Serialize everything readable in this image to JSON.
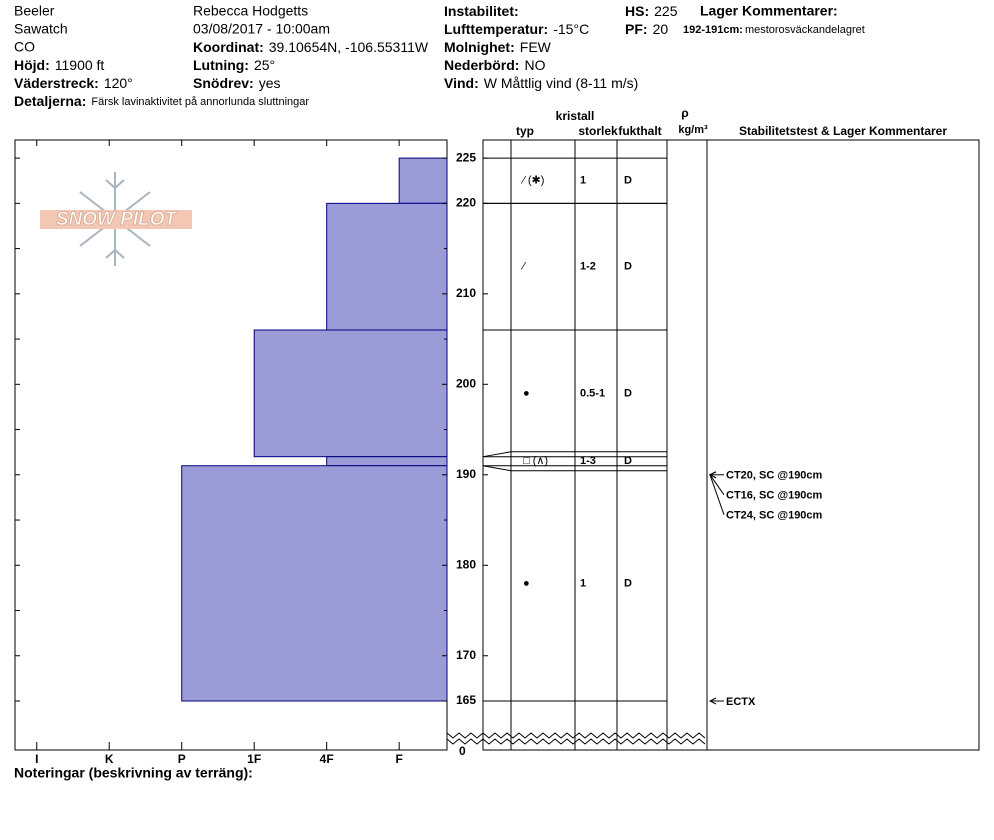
{
  "header": {
    "columns": [
      [
        "Beeler",
        "Sawatch",
        "CO",
        {
          "label": "Höjd:",
          "value": "11900 ft"
        },
        {
          "label": "Väderstreck:",
          "value": "120°"
        },
        {
          "label": "Detaljerna:",
          "value": "Färsk lavinaktivitet på annorlunda sluttningar"
        }
      ],
      [
        "Rebecca Hodgetts",
        "03/08/2017 - 10:00am",
        {
          "label": "Koordinat:",
          "value": "39.10654N, -106.55311W"
        },
        {
          "label": "Lutning:",
          "value": "25°"
        },
        {
          "label": "Snödrev:",
          "value": "yes"
        }
      ],
      [
        {
          "label": "Instabilitet:"
        },
        {
          "label": "Lufttemperatur:",
          "value": "-15°C"
        },
        {
          "label": "Molnighet:",
          "value": "FEW"
        },
        {
          "label": "Nederbörd:",
          "value": "NO"
        },
        {
          "label": "Vind:",
          "value": "W Måttlig vind (8-11 m/s)"
        }
      ],
      [
        {
          "label": "HS:",
          "value": "225"
        },
        {
          "label": "PF:",
          "value": "20"
        }
      ]
    ],
    "layer_comments_title": "Lager Kommentarer:",
    "layer_comment": {
      "label": "192-191cm:",
      "value": "mestorosväckandelagret"
    }
  },
  "logo": "SNOW PILOT",
  "table_header": {
    "crystal": "kristall",
    "type": "typ",
    "size": "storlek",
    "moisture": "fukthalt",
    "rho": "ρ",
    "density_unit": "kg/m³",
    "stability": "Stabilitetstest & Lager Kommentarer"
  },
  "chart_data": {
    "type": "snow_profile",
    "xlim": [
      0.34,
      6.3
    ],
    "xticks": [
      {
        "value": 6,
        "label": "I"
      },
      {
        "value": 5,
        "label": "K"
      },
      {
        "value": 4,
        "label": "P"
      },
      {
        "value": 3,
        "label": "1F"
      },
      {
        "value": 2,
        "label": "4F"
      },
      {
        "value": 1,
        "label": "F"
      }
    ],
    "ylim": [
      165,
      227
    ],
    "yticks": [
      225,
      220,
      210,
      200,
      190,
      180,
      170,
      165
    ],
    "yticks_minor": [
      215,
      205,
      195,
      185,
      175
    ],
    "ybreak": 0,
    "color": "#9b9bd7",
    "layers": [
      {
        "top": 225,
        "bottom": 220,
        "hardness": 1,
        "grain": "⁄ (✱)",
        "size": "1",
        "moisture": "D"
      },
      {
        "top": 220,
        "bottom": 206,
        "hardness": 2,
        "grain": "⁄",
        "size": "1-2",
        "moisture": "D"
      },
      {
        "top": 206,
        "bottom": 192,
        "hardness": 3,
        "grain": "●",
        "size": "0.5-1",
        "moisture": "D"
      },
      {
        "top": 192,
        "bottom": 191,
        "hardness": 2,
        "grain": "□ (∧)",
        "size": "1-3",
        "moisture": "D"
      },
      {
        "top": 191,
        "bottom": 165,
        "hardness": 4,
        "grain": "●",
        "size": "1",
        "moisture": "D"
      }
    ],
    "tests": [
      {
        "label": "CT20, SC @190cm",
        "depth": 190
      },
      {
        "label": "CT16, SC @190cm",
        "depth": 190
      },
      {
        "label": "CT24, SC @190cm",
        "depth": 190
      },
      {
        "label": "ECTX",
        "depth": 165
      }
    ]
  },
  "footer": "Noteringar (beskrivning av terräng):"
}
